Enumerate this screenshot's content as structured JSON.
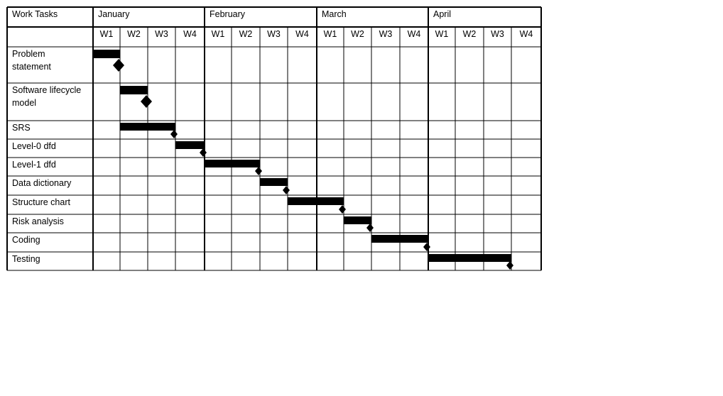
{
  "chart_data": {
    "type": "gantt",
    "header": {
      "task_column": "Work Tasks",
      "months": [
        "January",
        "February",
        "March",
        "April"
      ],
      "weeks": [
        "W1",
        "W2",
        "W3",
        "W4"
      ]
    },
    "tasks": [
      {
        "name_lines": [
          "Problem",
          "statement"
        ],
        "start_week": 1,
        "end_week": 1,
        "milestone_week": 1
      },
      {
        "name_lines": [
          "Software lifecycle",
          "model"
        ],
        "start_week": 2,
        "end_week": 2,
        "milestone_week": 2
      },
      {
        "name_lines": [
          "SRS"
        ],
        "start_week": 2,
        "end_week": 3,
        "milestone_week": 3
      },
      {
        "name_lines": [
          "Level-0 dfd"
        ],
        "start_week": 4,
        "end_week": 4,
        "milestone_week": 4
      },
      {
        "name_lines": [
          "Level-1 dfd"
        ],
        "start_week": 5,
        "end_week": 6,
        "milestone_week": 6
      },
      {
        "name_lines": [
          "Data dictionary"
        ],
        "start_week": 7,
        "end_week": 7,
        "milestone_week": 7
      },
      {
        "name_lines": [
          "Structure chart"
        ],
        "start_week": 8,
        "end_week": 9,
        "milestone_week": 9
      },
      {
        "name_lines": [
          "Risk analysis"
        ],
        "start_week": 10,
        "end_week": 10,
        "milestone_week": 10
      },
      {
        "name_lines": [
          "Coding"
        ],
        "start_week": 11,
        "end_week": 12,
        "milestone_week": 12
      },
      {
        "name_lines": [
          "Testing"
        ],
        "start_week": 13,
        "end_week": 15,
        "milestone_week": 15
      }
    ]
  }
}
